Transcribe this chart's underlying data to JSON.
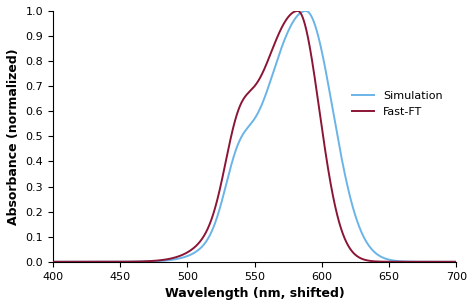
{
  "title": "",
  "xlabel": "Wavelength (nm, shifted)",
  "ylabel": "Absorbance (normalized)",
  "xlim": [
    400,
    700
  ],
  "ylim": [
    0,
    1.0
  ],
  "xticks": [
    400,
    450,
    500,
    550,
    600,
    650,
    700
  ],
  "yticks": [
    0.0,
    0.1,
    0.2,
    0.3,
    0.4,
    0.5,
    0.6,
    0.7,
    0.8,
    0.9,
    1.0
  ],
  "simulation_color": "#6ab4e8",
  "fastft_color": "#8b1535",
  "simulation_label": "Simulation",
  "fastft_label": "Fast-FT",
  "line_width": 1.4,
  "background_color": "#ffffff",
  "font_size": 9,
  "legend_font_size": 8
}
